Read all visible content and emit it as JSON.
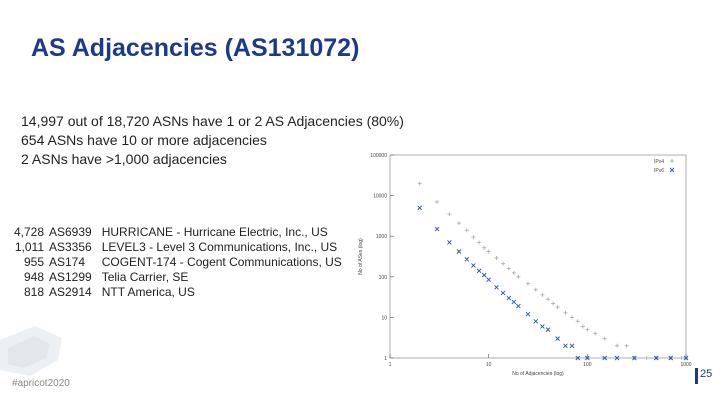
{
  "slide": {
    "title": "AS Adjacencies (AS131072)",
    "bullets": [
      "14,997 out of 18,720  ASNs have 1 or 2 AS Adjacencies (80%)",
      "654 ASNs have 10 or more adjacencies",
      "2 ASNs have >1,000 adjacencies"
    ],
    "top_asns": [
      {
        "count": "4,728",
        "asn": "AS6939",
        "name": "HURRICANE - Hurricane Electric, Inc., US"
      },
      {
        "count": "1,011",
        "asn": "AS3356",
        "name": "LEVEL3 - Level 3 Communications, Inc., US"
      },
      {
        "count": "955",
        "asn": "AS174",
        "name": "COGENT-174 - Cogent Communications, US"
      },
      {
        "count": "948",
        "asn": "AS1299",
        "name": "Telia Carrier, SE"
      },
      {
        "count": "818",
        "asn": "AS2914",
        "name": "NTT America, US"
      }
    ],
    "footer": "#apricot2020",
    "page_number": "25"
  },
  "colors": {
    "title": "#1b3a8c",
    "ipv4": "#b0b0b0",
    "ipv6": "#2a4fbf"
  },
  "chart_data": {
    "type": "scatter",
    "title": "",
    "xlabel": "No of Adjacencies (log)",
    "ylabel": "No of ASes (log)",
    "x_scale": "log",
    "y_scale": "log",
    "xlim": [
      1,
      1000
    ],
    "ylim": [
      1,
      100000
    ],
    "x_ticks": [
      "1",
      "10",
      "100",
      "1000"
    ],
    "y_ticks": [
      "1",
      "10",
      "100",
      "1000",
      "10000",
      "100000"
    ],
    "legend": {
      "position": "top-right"
    },
    "series": [
      {
        "name": "IPv4",
        "marker": "plus",
        "points": [
          [
            2,
            20000
          ],
          [
            3,
            7000
          ],
          [
            4,
            3500
          ],
          [
            5,
            2100
          ],
          [
            6,
            1400
          ],
          [
            7,
            950
          ],
          [
            8,
            700
          ],
          [
            9,
            520
          ],
          [
            10,
            420
          ],
          [
            12,
            290
          ],
          [
            14,
            210
          ],
          [
            16,
            160
          ],
          [
            18,
            125
          ],
          [
            20,
            100
          ],
          [
            25,
            68
          ],
          [
            30,
            48
          ],
          [
            35,
            36
          ],
          [
            40,
            28
          ],
          [
            45,
            22
          ],
          [
            50,
            18
          ],
          [
            60,
            13
          ],
          [
            70,
            10
          ],
          [
            80,
            8
          ],
          [
            90,
            6
          ],
          [
            100,
            5
          ],
          [
            120,
            4
          ],
          [
            150,
            3
          ],
          [
            200,
            2
          ],
          [
            250,
            2
          ],
          [
            300,
            1
          ],
          [
            400,
            1
          ],
          [
            500,
            1
          ],
          [
            700,
            1
          ],
          [
            900,
            1
          ],
          [
            1000,
            1
          ]
        ]
      },
      {
        "name": "IPv6",
        "marker": "x",
        "points": [
          [
            2,
            5000
          ],
          [
            3,
            1500
          ],
          [
            4,
            700
          ],
          [
            5,
            420
          ],
          [
            6,
            270
          ],
          [
            7,
            190
          ],
          [
            8,
            140
          ],
          [
            9,
            110
          ],
          [
            10,
            85
          ],
          [
            12,
            55
          ],
          [
            14,
            40
          ],
          [
            16,
            30
          ],
          [
            18,
            24
          ],
          [
            20,
            19
          ],
          [
            25,
            12
          ],
          [
            30,
            8
          ],
          [
            35,
            6
          ],
          [
            40,
            5
          ],
          [
            50,
            3
          ],
          [
            60,
            2
          ],
          [
            70,
            2
          ],
          [
            80,
            1
          ],
          [
            100,
            1
          ],
          [
            150,
            1
          ],
          [
            200,
            1
          ],
          [
            300,
            1
          ],
          [
            500,
            1
          ],
          [
            700,
            1
          ],
          [
            1000,
            1
          ]
        ]
      }
    ]
  }
}
